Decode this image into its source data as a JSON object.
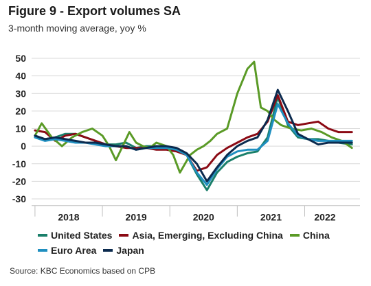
{
  "title": "Figure 9 - Export volumes SA",
  "subtitle": "3-month moving average, yoy %",
  "source": "Source: KBC Economics based on CPB",
  "chart_data": {
    "type": "line",
    "ylim": [
      -30,
      50
    ],
    "yticks": [
      -30,
      -20,
      -10,
      0,
      10,
      20,
      30,
      40,
      50
    ],
    "xlim": [
      2017.45,
      2022.32
    ],
    "xtick_labels": [
      {
        "label": "2018",
        "x": 2018.0
      },
      {
        "label": "2019",
        "x": 2019.0
      },
      {
        "label": "2020",
        "x": 2020.0
      },
      {
        "label": "2021",
        "x": 2021.0
      },
      {
        "label": "2022",
        "x": 2021.8
      }
    ],
    "year_separators": [
      2017.5,
      2018.5,
      2019.5,
      2020.5,
      2021.5
    ],
    "grid": true,
    "legend_position": "bottom",
    "series": [
      {
        "name": "United States",
        "color": "#1a7f6a",
        "x": [
          2017.5,
          2017.65,
          2017.8,
          2017.95,
          2018.1,
          2018.25,
          2018.4,
          2018.55,
          2018.7,
          2018.85,
          2019.0,
          2019.15,
          2019.3,
          2019.45,
          2019.6,
          2019.75,
          2019.9,
          2020.05,
          2020.2,
          2020.35,
          2020.5,
          2020.65,
          2020.8,
          2020.95,
          2021.1,
          2021.25,
          2021.4,
          2021.55,
          2021.7,
          2021.85,
          2022.0,
          2022.2
        ],
        "y": [
          6,
          4,
          5,
          7,
          7,
          5,
          3,
          1,
          1,
          2,
          -1,
          0,
          0,
          -1,
          -2,
          -5,
          -16,
          -25,
          -15,
          -9,
          -6,
          -4,
          -3,
          5,
          28,
          12,
          5,
          4,
          4,
          3,
          2,
          1
        ]
      },
      {
        "name": "Asia, Emerging, Excluding China",
        "color": "#8b0a14",
        "x": [
          2017.5,
          2017.65,
          2017.8,
          2017.95,
          2018.1,
          2018.25,
          2018.4,
          2018.55,
          2018.7,
          2018.85,
          2019.0,
          2019.15,
          2019.3,
          2019.45,
          2019.6,
          2019.75,
          2019.9,
          2020.05,
          2020.2,
          2020.35,
          2020.5,
          2020.65,
          2020.8,
          2020.95,
          2021.1,
          2021.25,
          2021.4,
          2021.55,
          2021.7,
          2021.85,
          2022.0,
          2022.2
        ],
        "y": [
          9,
          8,
          3,
          6,
          7,
          5,
          3,
          1,
          0,
          -1,
          -1,
          -1,
          -2,
          -2,
          -3,
          -5,
          -14,
          -12,
          -5,
          -1,
          2,
          5,
          7,
          14,
          29,
          14,
          12,
          13,
          14,
          10,
          8,
          8
        ]
      },
      {
        "name": "China",
        "color": "#5a9a26",
        "x": [
          2017.5,
          2017.6,
          2017.75,
          2017.9,
          2018.05,
          2018.2,
          2018.35,
          2018.5,
          2018.6,
          2018.7,
          2018.8,
          2018.9,
          2019.0,
          2019.1,
          2019.2,
          2019.3,
          2019.45,
          2019.55,
          2019.65,
          2019.8,
          2019.9,
          2020.0,
          2020.1,
          2020.2,
          2020.35,
          2020.5,
          2020.65,
          2020.75,
          2020.85,
          2020.95,
          2021.05,
          2021.15,
          2021.3,
          2021.45,
          2021.6,
          2021.75,
          2021.9,
          2022.05,
          2022.2
        ],
        "y": [
          6,
          13,
          5,
          0,
          5,
          8,
          10,
          6,
          0,
          -8,
          0,
          8,
          2,
          0,
          -1,
          2,
          0,
          -5,
          -15,
          -5,
          -2,
          0,
          3,
          7,
          10,
          30,
          44,
          48,
          22,
          20,
          15,
          12,
          10,
          9,
          10,
          8,
          5,
          3,
          -1
        ]
      },
      {
        "name": "Euro Area",
        "color": "#1f8fc0",
        "x": [
          2017.5,
          2017.65,
          2017.8,
          2017.95,
          2018.1,
          2018.25,
          2018.4,
          2018.55,
          2018.7,
          2018.85,
          2019.0,
          2019.15,
          2019.3,
          2019.45,
          2019.6,
          2019.75,
          2019.9,
          2020.05,
          2020.2,
          2020.35,
          2020.5,
          2020.65,
          2020.8,
          2020.95,
          2021.1,
          2021.25,
          2021.4,
          2021.55,
          2021.7,
          2021.85,
          2022.0,
          2022.2
        ],
        "y": [
          5,
          3,
          4,
          3,
          2,
          2,
          1,
          0,
          0,
          0,
          -2,
          -1,
          -1,
          -1,
          -2,
          -5,
          -15,
          -22,
          -13,
          -6,
          -3,
          -2,
          -2,
          3,
          24,
          13,
          6,
          4,
          3,
          3,
          3,
          3
        ]
      },
      {
        "name": "Japan",
        "color": "#0b2a4e",
        "x": [
          2017.5,
          2017.65,
          2017.8,
          2017.95,
          2018.1,
          2018.25,
          2018.4,
          2018.55,
          2018.7,
          2018.85,
          2019.0,
          2019.15,
          2019.3,
          2019.45,
          2019.6,
          2019.75,
          2019.9,
          2020.05,
          2020.2,
          2020.35,
          2020.5,
          2020.65,
          2020.8,
          2020.95,
          2021.1,
          2021.25,
          2021.4,
          2021.55,
          2021.7,
          2021.85,
          2022.0,
          2022.2
        ],
        "y": [
          6,
          4,
          5,
          4,
          3,
          2,
          2,
          1,
          0,
          0,
          -2,
          -1,
          0,
          0,
          -1,
          -4,
          -10,
          -20,
          -12,
          -5,
          0,
          3,
          5,
          15,
          32,
          20,
          7,
          4,
          1,
          2,
          2,
          2
        ]
      }
    ]
  },
  "legend_rows": [
    [
      "United States",
      "Asia, Emerging, Excluding China",
      "China"
    ],
    [
      "Euro Area",
      "Japan"
    ]
  ]
}
